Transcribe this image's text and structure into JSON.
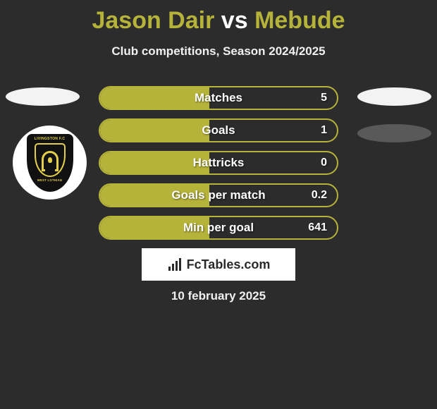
{
  "colors": {
    "background": "#2c2c2c",
    "accent": "#b6b33a",
    "text": "#ffffff",
    "brand_bg": "#ffffff",
    "brand_fg": "#2a2a2a",
    "badge_bg": "#111111",
    "badge_accent": "#e3cf4a",
    "avatar_light": "#f3f3f3",
    "avatar_dark": "#595959"
  },
  "title": {
    "player1": "Jason Dair",
    "vs": "vs",
    "player2": "Mebude"
  },
  "subtitle": "Club competitions, Season 2024/2025",
  "club_badge": {
    "top_text": "LIVINGSTON F.C",
    "bottom_text": "WEST LOTHIAN"
  },
  "stats": [
    {
      "label": "Matches",
      "value": "5",
      "fill_pct": 46
    },
    {
      "label": "Goals",
      "value": "1",
      "fill_pct": 46
    },
    {
      "label": "Hattricks",
      "value": "0",
      "fill_pct": 46
    },
    {
      "label": "Goals per match",
      "value": "0.2",
      "fill_pct": 46
    },
    {
      "label": "Min per goal",
      "value": "641",
      "fill_pct": 46
    }
  ],
  "brand": "FcTables.com",
  "date": "10 february 2025"
}
